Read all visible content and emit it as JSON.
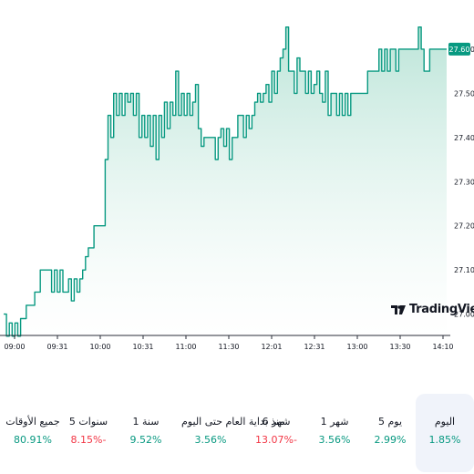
{
  "chart_data": {
    "type": "area",
    "x_ticks": [
      "09:00",
      "09:31",
      "10:00",
      "10:31",
      "11:00",
      "11:30",
      "12:01",
      "12:31",
      "13:00",
      "13:30",
      "14:10"
    ],
    "y_ticks": [
      "27.00",
      "27.10",
      "27.20",
      "27.30",
      "27.40",
      "27.50",
      "27.60"
    ],
    "ylim": [
      26.96,
      27.67
    ],
    "last_price": "27.60",
    "line_color": "#089981",
    "fill_color_top": "#b8e3d6",
    "fill_color_bottom": "#ffffff",
    "grid": false,
    "values": [
      27.0,
      26.95,
      26.98,
      26.95,
      26.98,
      26.95,
      26.99,
      26.99,
      27.02,
      27.02,
      27.02,
      27.05,
      27.05,
      27.1,
      27.1,
      27.1,
      27.1,
      27.05,
      27.1,
      27.05,
      27.1,
      27.05,
      27.05,
      27.08,
      27.03,
      27.08,
      27.05,
      27.08,
      27.1,
      27.13,
      27.15,
      27.15,
      27.2,
      27.2,
      27.2,
      27.2,
      27.35,
      27.45,
      27.4,
      27.5,
      27.45,
      27.5,
      27.45,
      27.5,
      27.48,
      27.5,
      27.45,
      27.5,
      27.4,
      27.45,
      27.4,
      27.45,
      27.38,
      27.45,
      27.35,
      27.45,
      27.4,
      27.48,
      27.42,
      27.48,
      27.45,
      27.55,
      27.45,
      27.5,
      27.45,
      27.5,
      27.45,
      27.48,
      27.52,
      27.42,
      27.38,
      27.4,
      27.4,
      27.4,
      27.4,
      27.35,
      27.4,
      27.42,
      27.38,
      27.42,
      27.35,
      27.4,
      27.4,
      27.45,
      27.45,
      27.4,
      27.45,
      27.42,
      27.45,
      27.48,
      27.5,
      27.48,
      27.5,
      27.52,
      27.48,
      27.55,
      27.5,
      27.55,
      27.58,
      27.6,
      27.65,
      27.55,
      27.55,
      27.5,
      27.58,
      27.55,
      27.55,
      27.5,
      27.55,
      27.5,
      27.52,
      27.55,
      27.5,
      27.48,
      27.55,
      27.45,
      27.5,
      27.5,
      27.45,
      27.5,
      27.45,
      27.5,
      27.45,
      27.5,
      27.5,
      27.5,
      27.5,
      27.5,
      27.5,
      27.55,
      27.55,
      27.55,
      27.55,
      27.6,
      27.55,
      27.6,
      27.55,
      27.6,
      27.6,
      27.55,
      27.6,
      27.6,
      27.6,
      27.6,
      27.6,
      27.6,
      27.6,
      27.65,
      27.6,
      27.55,
      27.55,
      27.6,
      27.6,
      27.6,
      27.6,
      27.6,
      27.6,
      27.6
    ]
  },
  "watermark": {
    "text": "TradingView",
    "icon": "tradingview-logo-icon"
  },
  "periods": [
    {
      "label": "اليوم",
      "value": "1.85%",
      "direction": "up",
      "selected": true
    },
    {
      "label": "5 يوم",
      "value": "2.99%",
      "direction": "up",
      "selected": false
    },
    {
      "label": "1 شهر",
      "value": "3.56%",
      "direction": "up",
      "selected": false
    },
    {
      "label": "6 شهر",
      "value": "13.07%-",
      "direction": "down",
      "selected": false
    },
    {
      "label": "منذ بداية العام حتى اليوم",
      "value": "3.56%",
      "direction": "up",
      "selected": false
    },
    {
      "label": "1 سنة",
      "value": "9.52%",
      "direction": "up",
      "selected": false
    },
    {
      "label": "5 سنوات",
      "value": "8.15%-",
      "direction": "down",
      "selected": false
    },
    {
      "label": "جميع الأوقات",
      "value": "80.91%",
      "direction": "up",
      "selected": false
    }
  ]
}
